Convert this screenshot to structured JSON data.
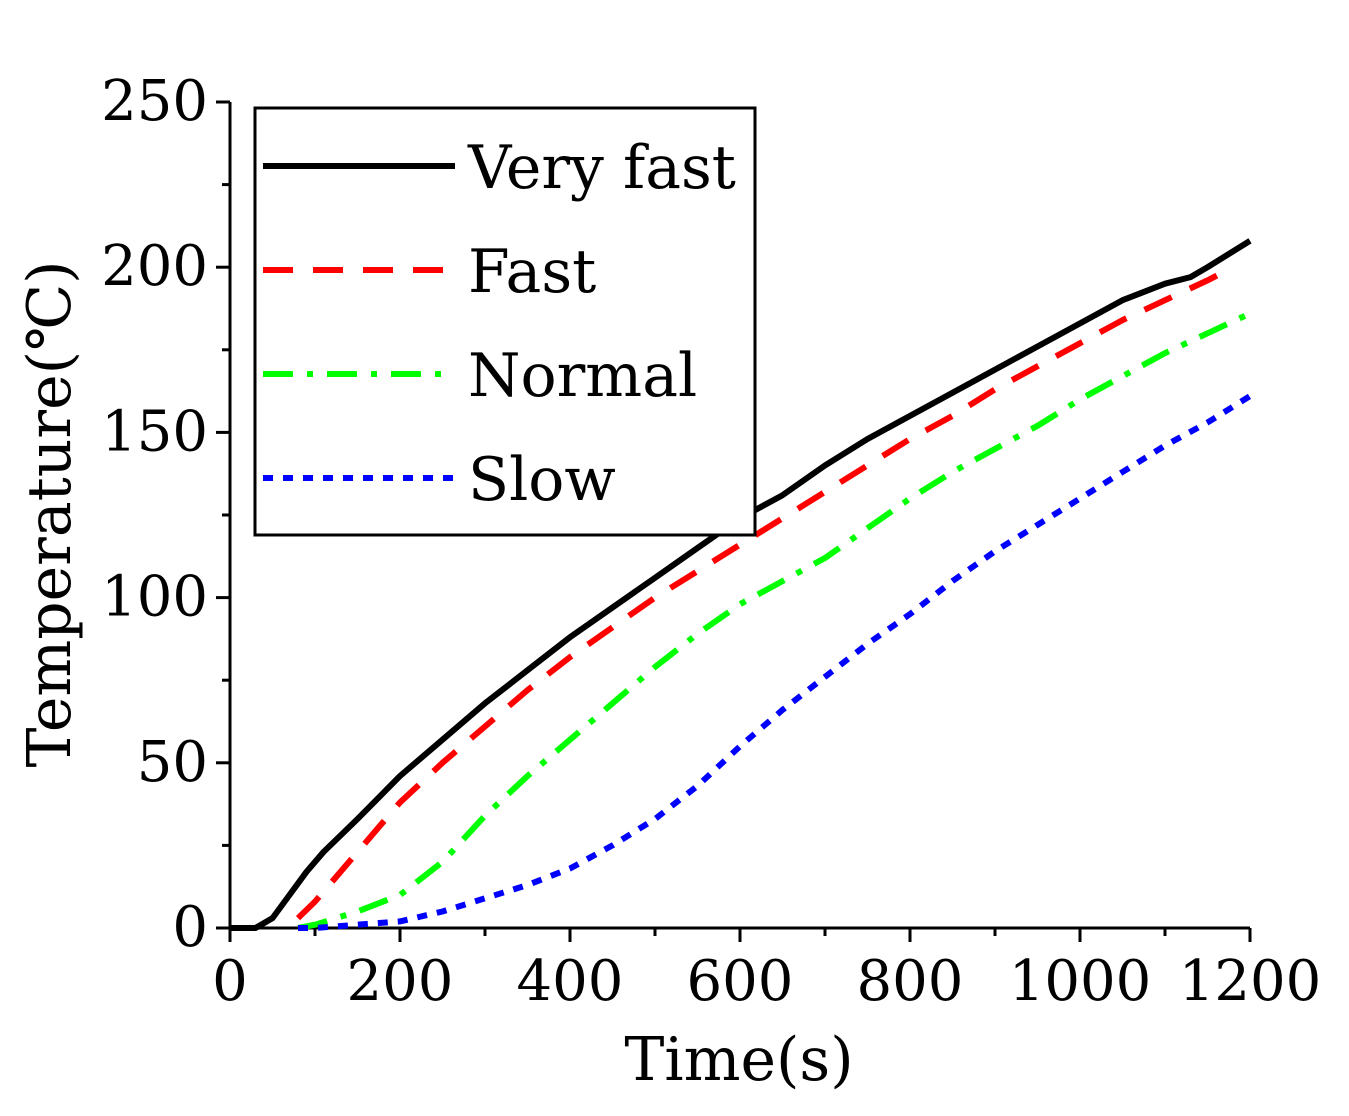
{
  "chart_data": {
    "type": "line",
    "title": "",
    "xlabel": "Time(s)",
    "ylabel": "Temperature(℃)",
    "xlim": [
      0,
      1200
    ],
    "ylim": [
      0,
      250
    ],
    "xticks": [
      0,
      200,
      400,
      600,
      800,
      1000,
      1200
    ],
    "yticks": [
      0,
      50,
      100,
      150,
      200,
      250
    ],
    "xtick_labels": [
      "0",
      "200",
      "400",
      "600",
      "800",
      "1000",
      "1200"
    ],
    "ytick_labels": [
      "0",
      "50",
      "100",
      "150",
      "200",
      "250"
    ],
    "grid": false,
    "legend_position": "top-left",
    "series": [
      {
        "name": "Very fast",
        "color": "#000000",
        "style": "solid",
        "x": [
          0,
          30,
          50,
          70,
          90,
          110,
          130,
          150,
          200,
          250,
          300,
          350,
          400,
          450,
          500,
          550,
          600,
          650,
          700,
          750,
          800,
          850,
          900,
          950,
          1000,
          1050,
          1100,
          1130,
          1150,
          1200
        ],
        "y": [
          0,
          0,
          3,
          10,
          17,
          23,
          28,
          33,
          46,
          57,
          68,
          78,
          88,
          97,
          106,
          115,
          124,
          131,
          140,
          148,
          155,
          162,
          169,
          176,
          183,
          190,
          195,
          197,
          200,
          208
        ]
      },
      {
        "name": "Fast",
        "color": "#ff0000",
        "style": "dashed",
        "x": [
          80,
          100,
          150,
          200,
          250,
          300,
          350,
          400,
          450,
          500,
          550,
          600,
          650,
          700,
          750,
          800,
          850,
          900,
          950,
          1000,
          1050,
          1100,
          1150,
          1180
        ],
        "y": [
          3,
          8,
          23,
          38,
          50,
          61,
          72,
          82,
          91,
          100,
          108,
          116,
          124,
          132,
          140,
          148,
          155,
          163,
          170,
          177,
          184,
          190,
          196,
          200
        ]
      },
      {
        "name": "Normal",
        "color": "#00ff00",
        "style": "dashdot",
        "x": [
          80,
          100,
          150,
          200,
          250,
          300,
          350,
          400,
          450,
          500,
          550,
          600,
          650,
          700,
          750,
          800,
          850,
          900,
          950,
          1000,
          1050,
          1100,
          1150,
          1200
        ],
        "y": [
          0,
          1,
          5,
          10,
          20,
          34,
          46,
          57,
          68,
          79,
          89,
          98,
          105,
          112,
          121,
          130,
          138,
          145,
          152,
          160,
          167,
          174,
          180,
          186
        ]
      },
      {
        "name": "Slow",
        "color": "#0000ff",
        "style": "dotted",
        "x": [
          80,
          100,
          150,
          200,
          250,
          300,
          350,
          400,
          450,
          500,
          550,
          600,
          650,
          700,
          750,
          800,
          850,
          900,
          950,
          1000,
          1050,
          1100,
          1150,
          1200
        ],
        "y": [
          0,
          0,
          1,
          2,
          5,
          9,
          13,
          18,
          25,
          33,
          43,
          55,
          66,
          76,
          86,
          95,
          105,
          114,
          122,
          130,
          138,
          146,
          153,
          161
        ]
      }
    ]
  }
}
